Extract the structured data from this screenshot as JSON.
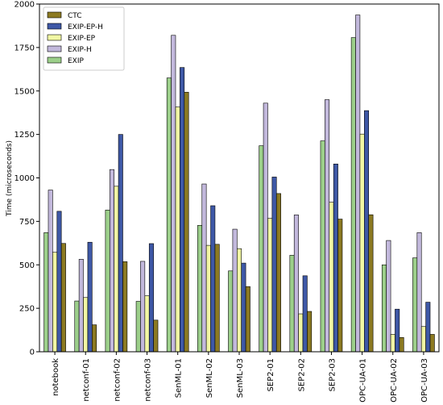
{
  "chart_data": {
    "type": "bar",
    "title": "",
    "xlabel": "",
    "ylabel": "Time (microseconds)",
    "ylim": [
      0,
      2000
    ],
    "yticks": [
      0,
      250,
      500,
      750,
      1000,
      1250,
      1500,
      1750,
      2000
    ],
    "categories": [
      "notebook",
      "netconf-01",
      "netconf-02",
      "netconf-03",
      "SenML-01",
      "SenML-02",
      "SenML-03",
      "SEP2-01",
      "SEP2-02",
      "SEP2-03",
      "OPC-UA-01",
      "OPC-UA-02",
      "OPC-UA-03"
    ],
    "legend_position": "top-left",
    "grid": false,
    "series": [
      {
        "name": "EXIP",
        "color": "#9ccf8a",
        "values": [
          685,
          292,
          815,
          290,
          1575,
          727,
          465,
          1185,
          555,
          1213,
          1807,
          500,
          540
        ]
      },
      {
        "name": "EXIP-H",
        "color": "#c2b8dc",
        "values": [
          930,
          532,
          1048,
          520,
          1820,
          965,
          705,
          1430,
          787,
          1450,
          1937,
          640,
          685
        ]
      },
      {
        "name": "EXIP-EP",
        "color": "#f1f7a4",
        "values": [
          572,
          312,
          952,
          322,
          1408,
          612,
          593,
          767,
          218,
          860,
          1252,
          100,
          145
        ]
      },
      {
        "name": "EXIP-EP-H",
        "color": "#3e58a6",
        "values": [
          808,
          630,
          1250,
          622,
          1635,
          840,
          510,
          1005,
          437,
          1080,
          1387,
          245,
          285
        ]
      },
      {
        "name": "CTC",
        "color": "#8c7a22",
        "values": [
          623,
          155,
          518,
          182,
          1493,
          618,
          375,
          910,
          232,
          763,
          788,
          82,
          100
        ]
      }
    ],
    "legend_order": [
      "CTC",
      "EXIP-EP-H",
      "EXIP-EP",
      "EXIP-H",
      "EXIP"
    ]
  }
}
